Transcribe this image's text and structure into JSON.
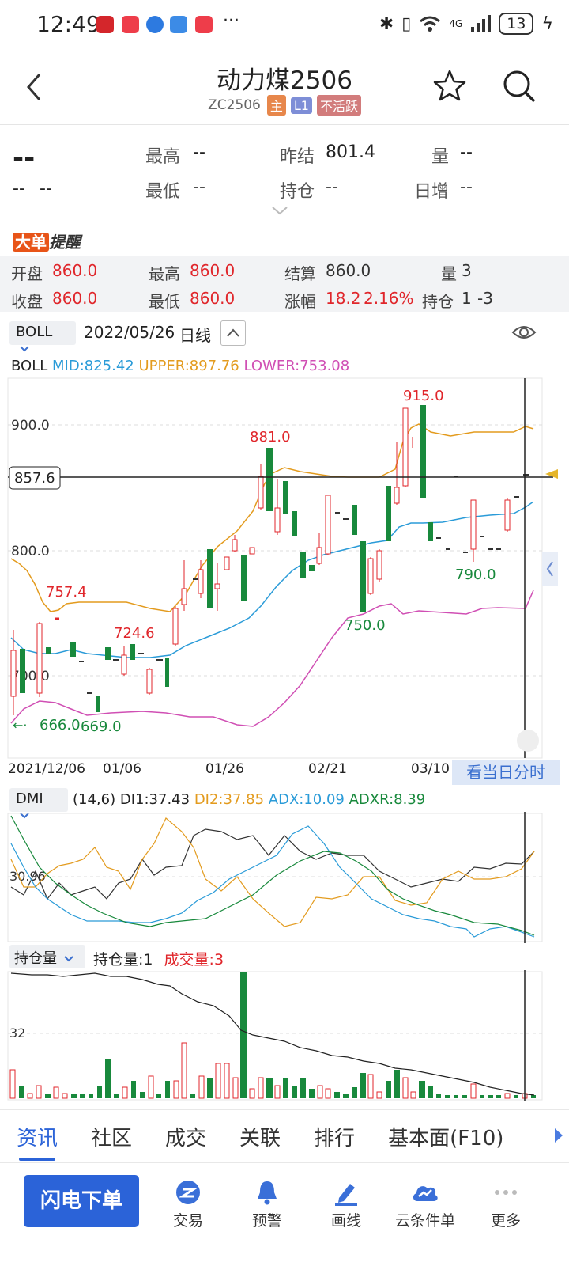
{
  "status_bar": {
    "time": "12:49",
    "more": "···",
    "network": "4G",
    "battery": "13"
  },
  "header": {
    "title": "动力煤2506",
    "code": "ZC2506",
    "tags": [
      "主",
      "L1",
      "不活跃"
    ]
  },
  "quote": {
    "last": "--",
    "change": "--",
    "change_pct": "--",
    "high_label": "最高",
    "high": "--",
    "low_label": "最低",
    "low": "--",
    "prev_settle_label": "昨结",
    "prev_settle": "801.4",
    "open_interest_label": "持仓",
    "open_interest": "--",
    "volume_label": "量",
    "volume": "--",
    "daily_inc_label": "日增",
    "daily_inc": "--"
  },
  "alert": {
    "part1": "大单",
    "part2": "提醒"
  },
  "ohlc": {
    "open_label": "开盘",
    "open": "860.0",
    "high_label": "最高",
    "high": "860.0",
    "settle_label": "结算",
    "settle": "860.0",
    "vol_label": "量",
    "vol": "3",
    "close_label": "收盘",
    "close": "860.0",
    "low_label": "最低",
    "low": "860.0",
    "chg_label": "涨幅",
    "chg": "18.2",
    "chg_pct": "2.16%",
    "oi_label": "持仓",
    "oi": "1",
    "oi_chg": "-3"
  },
  "toolbar": {
    "indicator": "BOLL",
    "date": "2022/05/26",
    "period": "日线"
  },
  "boll": {
    "name": "BOLL",
    "mid": "MID:825.42",
    "upper": "UPPER:897.76",
    "lower": "LOWER:753.08"
  },
  "price_chart": {
    "y_labels": [
      "900.0",
      "800.0",
      "700.0"
    ],
    "crosshair_price": "857.6",
    "annotations": [
      "881.0",
      "915.0",
      "757.4",
      "724.6",
      "750.0",
      "790.0",
      "666.0",
      "669.0"
    ],
    "x_labels": [
      "2021/12/06",
      "01/06",
      "01/26",
      "02/21",
      "03/10"
    ],
    "intraday_button": "看当日分时"
  },
  "dmi": {
    "indicator": "DMI",
    "params": "(14,6)",
    "di1": "DI1:37.43",
    "di2": "DI2:37.85",
    "adx": "ADX:10.09",
    "adxr": "ADXR:8.39",
    "y_label": "30.96"
  },
  "oi_panel": {
    "indicator": "持仓量",
    "oi": "持仓量:1",
    "vol": "成交量:3",
    "y_label": "32"
  },
  "colors": {
    "up": "#e0262b",
    "down": "#18893c",
    "mid": "#2a9bd8",
    "upper": "#e39b1e",
    "lower": "#d04fb4",
    "accent": "#2b63d8"
  },
  "tabs": [
    "资讯",
    "社区",
    "成交",
    "关联",
    "排行",
    "基本面(F10)"
  ],
  "bottom_nav": {
    "flash_order": "闪电下单",
    "items": [
      "交易",
      "预警",
      "画线",
      "云条件单",
      "更多"
    ]
  }
}
